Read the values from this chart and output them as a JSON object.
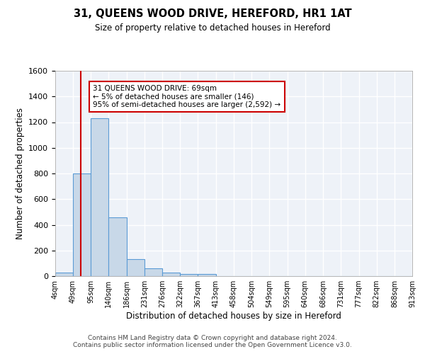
{
  "title": "31, QUEENS WOOD DRIVE, HEREFORD, HR1 1AT",
  "subtitle": "Size of property relative to detached houses in Hereford",
  "xlabel": "Distribution of detached houses by size in Hereford",
  "ylabel": "Number of detached properties",
  "bin_edges": [
    4,
    49,
    95,
    140,
    186,
    231,
    276,
    322,
    367,
    413,
    458,
    504,
    549,
    595,
    640,
    686,
    731,
    777,
    822,
    868,
    913
  ],
  "bar_heights": [
    25,
    800,
    1230,
    460,
    130,
    60,
    25,
    15,
    15,
    0,
    0,
    0,
    0,
    0,
    0,
    0,
    0,
    0,
    0,
    0
  ],
  "bar_color": "#c8d8e8",
  "bar_edgecolor": "#5b9bd5",
  "background_color": "#eef2f8",
  "grid_color": "#ffffff",
  "vline_x": 69,
  "vline_color": "#cc0000",
  "ylim": [
    0,
    1600
  ],
  "yticks": [
    0,
    200,
    400,
    600,
    800,
    1000,
    1200,
    1400,
    1600
  ],
  "annotation_text": "31 QUEENS WOOD DRIVE: 69sqm\n← 5% of detached houses are smaller (146)\n95% of semi-detached houses are larger (2,592) →",
  "annotation_box_color": "#ffffff",
  "annotation_border_color": "#cc0000",
  "footer_line1": "Contains HM Land Registry data © Crown copyright and database right 2024.",
  "footer_line2": "Contains public sector information licensed under the Open Government Licence v3.0.",
  "tick_labels": [
    "4sqm",
    "49sqm",
    "95sqm",
    "140sqm",
    "186sqm",
    "231sqm",
    "276sqm",
    "322sqm",
    "367sqm",
    "413sqm",
    "458sqm",
    "504sqm",
    "549sqm",
    "595sqm",
    "640sqm",
    "686sqm",
    "731sqm",
    "777sqm",
    "822sqm",
    "868sqm",
    "913sqm"
  ]
}
